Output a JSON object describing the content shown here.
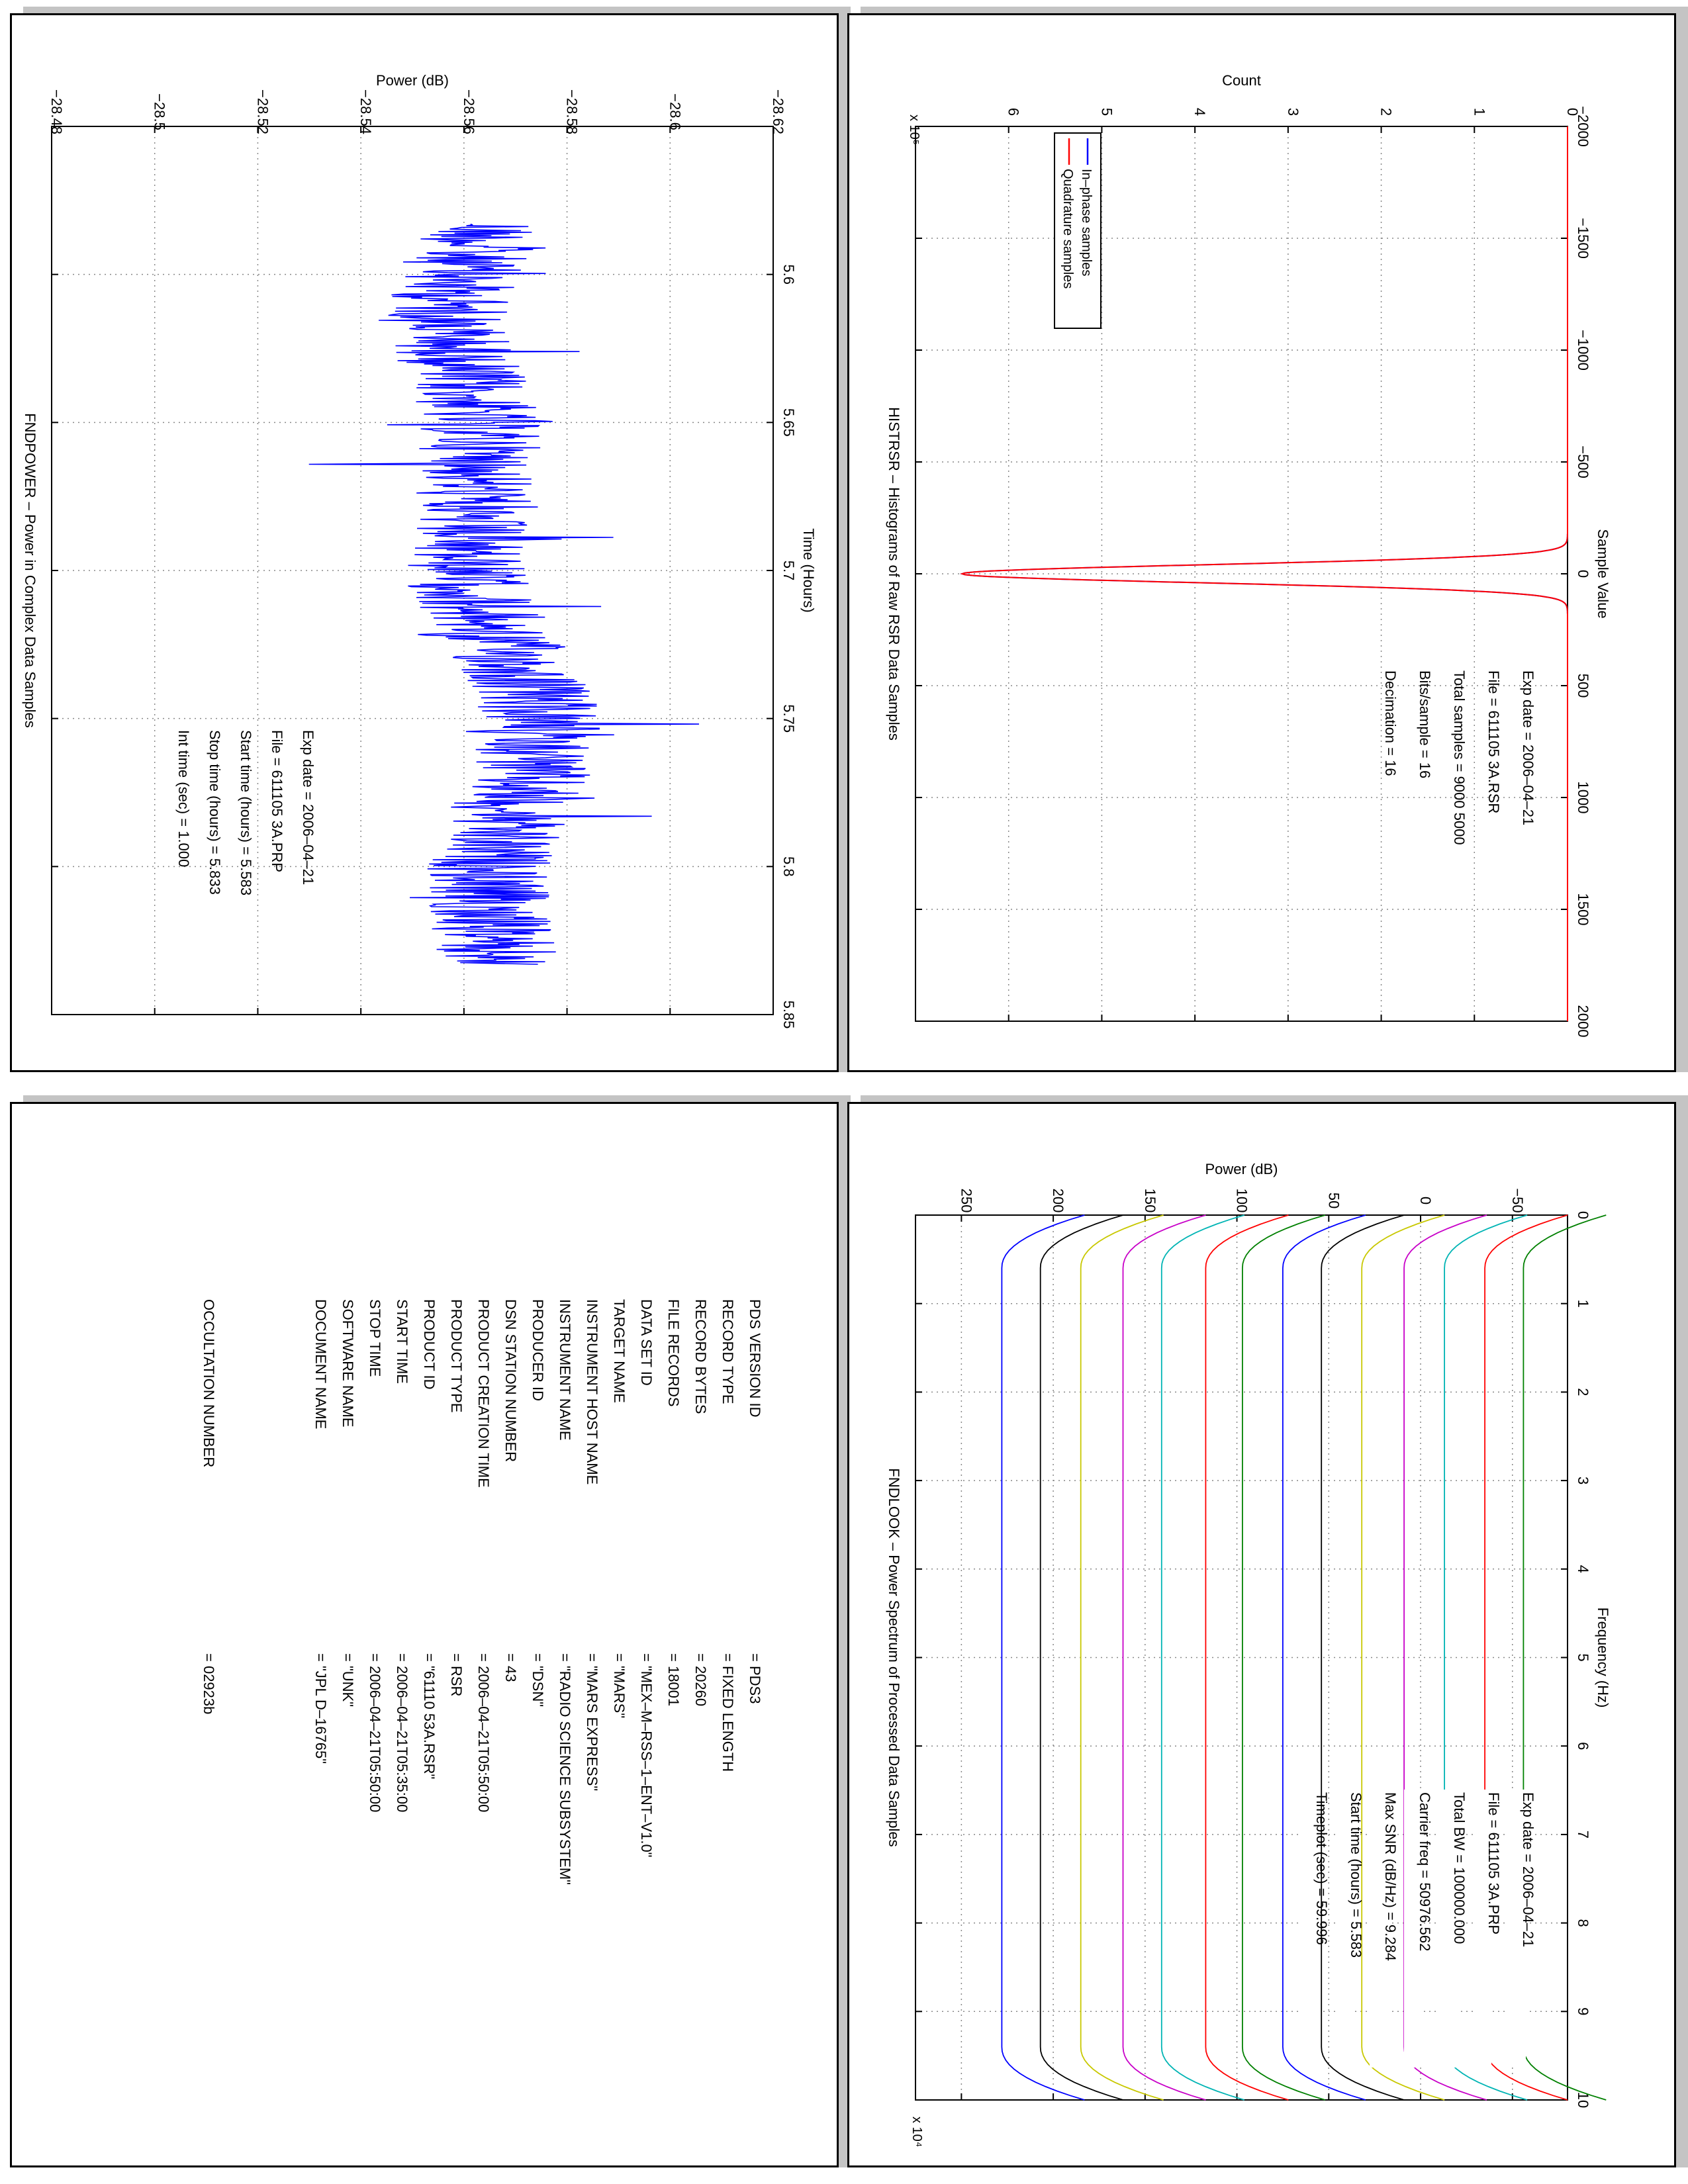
{
  "chart_data": [
    {
      "id": "fndpower",
      "type": "line",
      "title": "FNDPOWER – Power in Complex Data Samples",
      "xlabel": "Time (Hours)",
      "ylabel": "Power (dB)",
      "xlim": [
        5.55,
        5.85
      ],
      "ylim": [
        -28.62,
        -28.48
      ],
      "x_ticks": [
        "5.6",
        "5.65",
        "5.7",
        "5.75",
        "5.8",
        "5.85"
      ],
      "y_ticks": [
        "−28.62",
        "−28.6",
        "−28.58",
        "−28.56",
        "−28.54",
        "−28.52",
        "−28.5",
        "−28.48"
      ],
      "grid": true,
      "series": [
        {
          "color": "#0000ff",
          "x_start": 5.583,
          "x_end": 5.833,
          "mean": -28.565,
          "spread": 0.012,
          "max_spike": -28.527,
          "min_spike": -28.611
        }
      ],
      "annotations": [
        {
          "label": "Exp date =",
          "value": "2006–04–21"
        },
        {
          "label": "File =",
          "value": "611105 3A.PRP"
        },
        {
          "label": "Start time (hours) =",
          "value": "5.583"
        },
        {
          "label": "Stop time (hours) =",
          "value": "5.833"
        },
        {
          "label": "Int time (sec) =",
          "value": "1.000"
        }
      ]
    },
    {
      "id": "histrsr",
      "type": "line",
      "title": "HISTRSR – Histograms of Raw RSR Data Samples",
      "xlabel": "Sample Value",
      "ylabel": "Count",
      "xlim": [
        -2000,
        2000
      ],
      "ylim": [
        0,
        7
      ],
      "y_exponent": "x 10⁵",
      "x_ticks": [
        "−2000",
        "−1500",
        "−1000",
        "−500",
        "0",
        "500",
        "1000",
        "1500",
        "2000"
      ],
      "y_ticks": [
        "0",
        "1",
        "2",
        "3",
        "4",
        "5",
        "6"
      ],
      "grid": true,
      "legend": "top-right",
      "series": [
        {
          "name": "In–phase samples",
          "color": "#0000ff",
          "peak_x": 0,
          "peak_count": 6.5,
          "width": 40
        },
        {
          "name": "Quadrature samples",
          "color": "#ff0000",
          "peak_x": 0,
          "peak_count": 6.5,
          "width": 40
        }
      ],
      "annotations": [
        {
          "label": "Exp date =",
          "value": "2006–04–21"
        },
        {
          "label": "File =",
          "value": "611105 3A.RSR"
        },
        {
          "label": "Total samples =",
          "value": "9000 5000"
        },
        {
          "label": "Bits/sample =",
          "value": "16"
        },
        {
          "label": "Decimation =",
          "value": "16"
        }
      ]
    },
    {
      "id": "fndlook",
      "type": "line",
      "title": "FNDLOOK – Power Spectrum of Processed Data Samples",
      "xlabel": "Frequency (Hz)",
      "ylabel": "Power (dB)",
      "xlim": [
        0,
        100000
      ],
      "ylim": [
        -80,
        275
      ],
      "x_exponent": "x 10⁴",
      "x_ticks": [
        "0",
        "1",
        "2",
        "3",
        "4",
        "5",
        "6",
        "7",
        "8",
        "9",
        "10"
      ],
      "y_ticks": [
        "−50",
        "0",
        "50",
        "100",
        "150",
        "200",
        "250"
      ],
      "grid": true,
      "series": [
        {
          "color": "#0000ff",
          "level": 228
        },
        {
          "color": "#000000",
          "level": 207
        },
        {
          "color": "#c8c800",
          "level": 185
        },
        {
          "color": "#c800c8",
          "level": 162
        },
        {
          "color": "#00b4b4",
          "level": 141
        },
        {
          "color": "#ff0000",
          "level": 117
        },
        {
          "color": "#008000",
          "level": 97
        },
        {
          "color": "#0000ff",
          "level": 75
        },
        {
          "color": "#000000",
          "level": 54
        },
        {
          "color": "#c8c800",
          "level": 32
        },
        {
          "color": "#c800c8",
          "level": 9
        },
        {
          "color": "#00b4b4",
          "level": -13
        },
        {
          "color": "#ff0000",
          "level": -35
        },
        {
          "color": "#008000",
          "level": -56
        }
      ],
      "annotations": [
        {
          "label": "Exp date =",
          "value": "2006–04–21"
        },
        {
          "label": "File =",
          "value": "611105 3A.PRP"
        },
        {
          "label": "Total BW =",
          "value": "100000.000"
        },
        {
          "label": "Carrier freq =",
          "value": "50976.562"
        },
        {
          "label": "Max SNR (dB/Hz) =",
          "value": "9.284"
        },
        {
          "label": "Start time (hours) =",
          "value": "5.583"
        },
        {
          "label": "Timeplot (sec) =",
          "value": "59.996"
        }
      ]
    }
  ],
  "label_list": [
    {
      "key": "PDS VERSION ID",
      "value": "= PDS3"
    },
    {
      "key": "RECORD TYPE",
      "value": "= FIXED LENGTH"
    },
    {
      "key": "RECORD BYTES",
      "value": "= 20260"
    },
    {
      "key": "FILE RECORDS",
      "value": "= 18001"
    },
    {
      "key": "DATA SET ID",
      "value": "= \"MEX–M–RSS–1–ENT–V1.0\""
    },
    {
      "key": "TARGET NAME",
      "value": "= \"MARS\""
    },
    {
      "key": "INSTRUMENT HOST NAME",
      "value": "= \"MARS EXPRESS\""
    },
    {
      "key": "INSTRUMENT NAME",
      "value": "= \"RADIO SCIENCE SUBSYSTEM\""
    },
    {
      "key": "PRODUCER ID",
      "value": "= \"DSN\""
    },
    {
      "key": "DSN STATION NUMBER",
      "value": "= 43"
    },
    {
      "key": "PRODUCT CREATION TIME",
      "value": "= 2006–04–21T05:50:00"
    },
    {
      "key": "PRODUCT TYPE",
      "value": "= RSR"
    },
    {
      "key": "PRODUCT ID",
      "value": "= \"61110 53A.RSR\""
    },
    {
      "key": "START TIME",
      "value": "= 2006–04–21T05:35:00"
    },
    {
      "key": "STOP TIME",
      "value": "= 2006–04–21T05:50:00"
    },
    {
      "key": "SOFTWARE NAME",
      "value": "= \"UNK\""
    },
    {
      "key": "DOCUMENT NAME",
      "value": "= \"JPL D–16765\""
    },
    {
      "key": "",
      "value": ""
    },
    {
      "key": "OCCULTATION NUMBER",
      "value": "= 02923b"
    }
  ]
}
